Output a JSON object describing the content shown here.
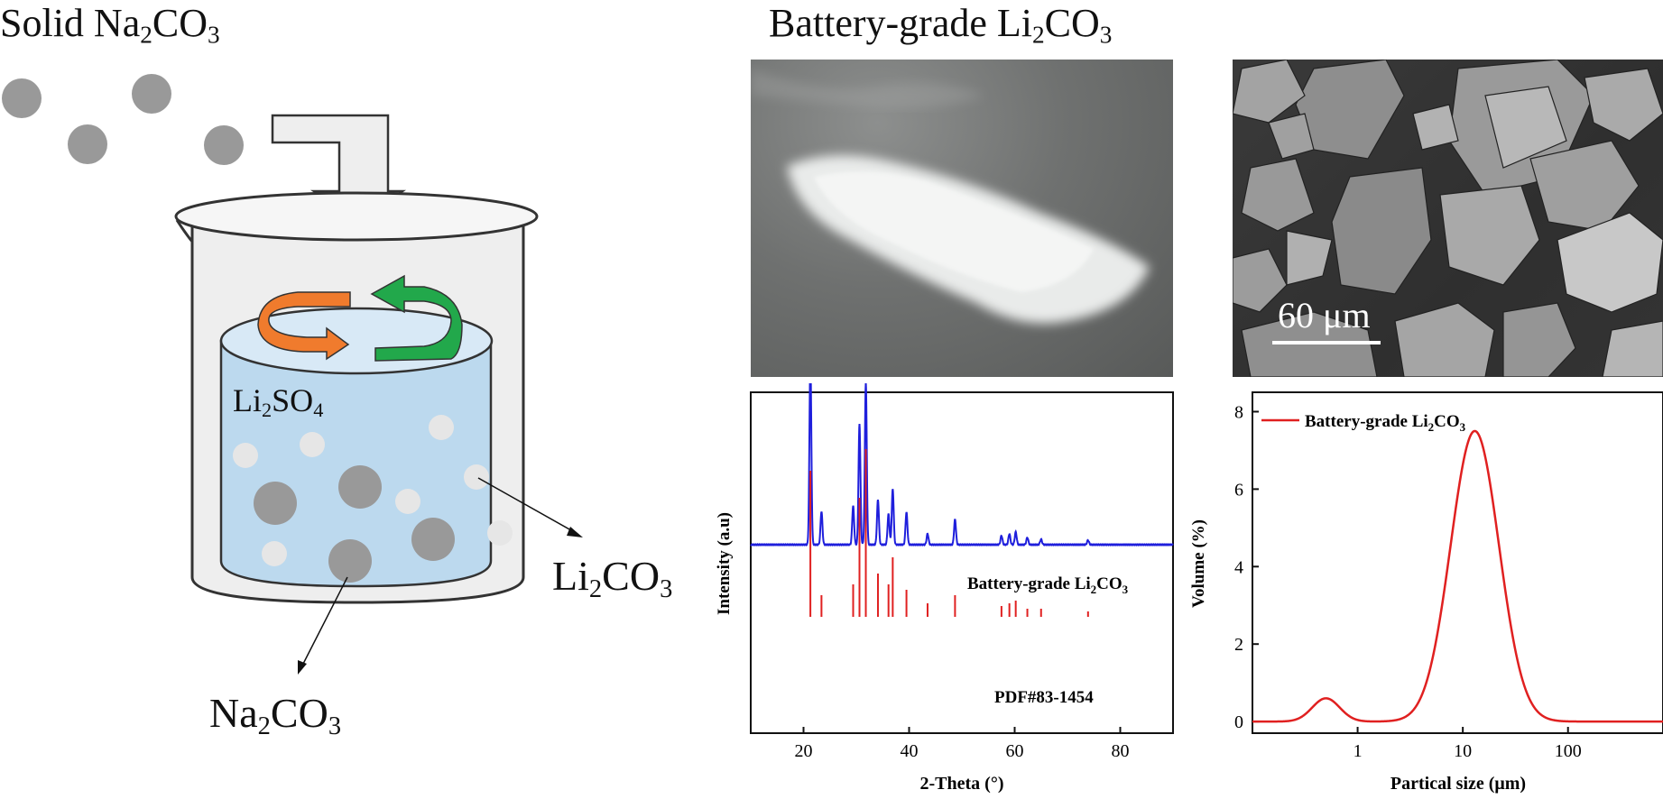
{
  "left": {
    "title_main": "Solid Na",
    "title_sub": "2",
    "title_tail": "CO",
    "title_sub2": "3",
    "li2so4_main": "Li",
    "li2so4_sub": "2",
    "li2so4_tail": "SO",
    "li2so4_sub2": "4",
    "li2co3_main": "Li",
    "li2co3_sub": "2",
    "li2co3_tail": "CO",
    "li2co3_sub2": "3",
    "na2co3_main": "Na",
    "na2co3_sub": "2",
    "na2co3_tail": "CO",
    "na2co3_sub2": "3"
  },
  "right": {
    "title_main": "Battery-grade Li",
    "title_sub": "2",
    "title_tail": "CO",
    "title_sub2": "3",
    "sem_scale": "60 μm"
  },
  "xrd": {
    "ylabel": "Intensity (a.u)",
    "xlabel": "2-Theta (°)",
    "sample_label_main": "Battery-grade Li",
    "sample_label_sub": "2",
    "sample_label_tail": "CO",
    "sample_label_sub2": "3",
    "ref_label": "PDF#83-1454",
    "x_ticks": [
      "20",
      "40",
      "60",
      "80"
    ],
    "x_range": [
      10,
      90
    ],
    "sample_color": "#1f1fdc",
    "ref_color": "#e02020"
  },
  "psd": {
    "ylabel": "Volume (%)",
    "xlabel": "Partical size (μm)",
    "legend_main": "Battery-grade Li",
    "legend_sub": "2",
    "legend_tail": "CO",
    "legend_sub2": "3",
    "y_ticks": [
      "0",
      "2",
      "4",
      "6",
      "8"
    ],
    "x_ticks": [
      "1",
      "10",
      "100"
    ],
    "color": "#e02020"
  },
  "colors": {
    "liquid": "#bcd9ee",
    "liquid_top": "#d8e9f6",
    "beaker": "#efefef",
    "na_particle": "#999999",
    "li_particle": "#e6e6e6",
    "arrow_orange": "#f07b2d",
    "arrow_green": "#22a84b"
  }
}
